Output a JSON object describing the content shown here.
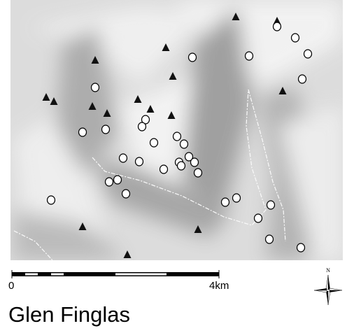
{
  "scale_bar": {
    "start_label": "0",
    "end_label": "4km"
  },
  "north_arrow": {
    "label": "N"
  },
  "title": "Glen Finglas"
}
